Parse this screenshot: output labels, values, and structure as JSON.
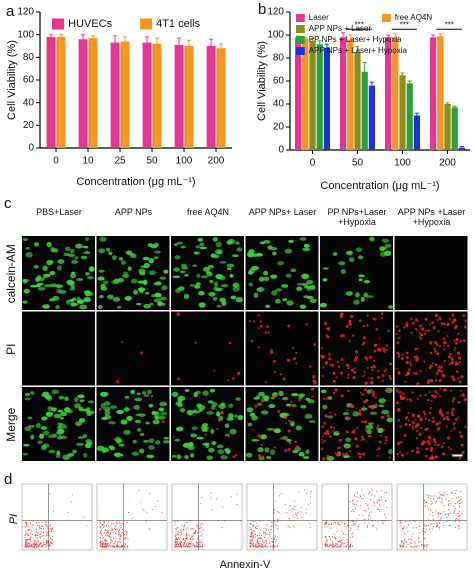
{
  "panel_labels": [
    "a",
    "b",
    "c",
    "d"
  ],
  "chart_data": [
    {
      "type": "bar",
      "ylabel": "Cell Viability (%)",
      "xlabel": "Concentration (μg mL⁻¹)",
      "categories": [
        "0",
        "10",
        "25",
        "50",
        "100",
        "200"
      ],
      "series": [
        {
          "name": "HUVECs",
          "color": "#e8368f",
          "values": [
            98,
            96,
            93,
            93,
            91,
            90
          ],
          "errors": [
            2,
            4,
            6,
            5,
            6,
            6
          ]
        },
        {
          "name": "4T1 cells",
          "color": "#f7931e",
          "values": [
            98,
            97,
            94,
            92,
            90,
            88
          ],
          "errors": [
            2,
            2,
            4,
            5,
            5,
            4
          ]
        }
      ],
      "ylim": [
        0,
        120
      ],
      "yticks": [
        0,
        20,
        40,
        60,
        80,
        100,
        120
      ],
      "legend": "top"
    },
    {
      "type": "bar",
      "ylabel": "Cell Viability (%)",
      "xlabel": "Concentration (μg mL⁻¹)",
      "categories": [
        "0",
        "50",
        "100",
        "200"
      ],
      "series": [
        {
          "name": "Laser",
          "color": "#e8368f",
          "values": [
            98,
            98,
            98,
            98
          ],
          "errors": [
            1,
            4,
            2,
            2
          ]
        },
        {
          "name": "free AQ4N",
          "color": "#f7931e",
          "values": [
            97,
            96,
            98,
            99
          ],
          "errors": [
            1,
            4,
            3,
            2
          ]
        },
        {
          "name": "APP NPs + Laser",
          "color": "#8c8c1a",
          "values": [
            95,
            85,
            65,
            40
          ],
          "errors": [
            2,
            5,
            2,
            1
          ]
        },
        {
          "name": "PP NPs + Laser+ Hypoxia",
          "color": "#2f9e3a",
          "values": [
            92,
            68,
            58,
            37
          ],
          "errors": [
            3,
            8,
            2,
            1
          ]
        },
        {
          "name": "APP NPs + Laser+ Hypoxia",
          "color": "#1a33d6",
          "values": [
            89,
            56,
            30,
            2
          ],
          "errors": [
            3,
            3,
            2,
            1
          ]
        }
      ],
      "annotations": [
        {
          "category": "50",
          "text": "***"
        },
        {
          "category": "100",
          "text": "***"
        },
        {
          "category": "200",
          "text": "***"
        }
      ],
      "ylim": [
        0,
        120
      ],
      "yticks": [
        0,
        20,
        40,
        60,
        80,
        100,
        120
      ],
      "legend": "top"
    }
  ],
  "imaging": {
    "columns": [
      "PBS+Laser",
      "APP NPs",
      "free AQ4N",
      "APP NPs+ Laser",
      "PP NPs+Laser +Hypoxia",
      "APP NPs +Laser +Hypoxia"
    ],
    "rows": [
      "calcein-AM",
      "PI",
      "Merge"
    ]
  },
  "flow": {
    "y_label": "PI",
    "x_label": "Annexin-V"
  }
}
